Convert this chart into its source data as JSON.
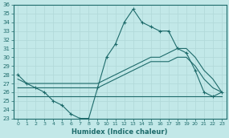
{
  "xlabel": "Humidex (Indice chaleur)",
  "xlim": [
    -0.5,
    23.5
  ],
  "ylim": [
    23,
    36
  ],
  "yticks": [
    23,
    24,
    25,
    26,
    27,
    28,
    29,
    30,
    31,
    32,
    33,
    34,
    35,
    36
  ],
  "xticks": [
    0,
    1,
    2,
    3,
    4,
    5,
    6,
    7,
    8,
    9,
    10,
    11,
    12,
    13,
    14,
    15,
    16,
    17,
    18,
    19,
    20,
    21,
    22,
    23
  ],
  "bg_color": "#c2e8e8",
  "line_color": "#1e6b6b",
  "grid_color": "#b0d8d8",
  "line1_x": [
    0,
    1,
    2,
    3,
    4,
    5,
    6,
    7,
    8,
    9,
    10,
    11,
    12,
    13,
    14,
    15,
    16,
    17,
    18,
    19,
    20,
    21,
    22,
    23
  ],
  "line1_y": [
    28,
    27,
    26.5,
    26,
    25,
    24.5,
    23.5,
    23,
    23,
    26.5,
    30,
    31.5,
    34,
    35.5,
    34,
    33.5,
    33,
    33,
    31,
    30.5,
    28.5,
    26,
    25.5,
    26
  ],
  "line2_x": [
    0,
    1,
    2,
    3,
    4,
    5,
    6,
    7,
    8,
    9,
    10,
    11,
    12,
    13,
    14,
    15,
    16,
    17,
    18,
    19,
    20,
    21,
    22,
    23
  ],
  "line2_y": [
    27.5,
    27.0,
    27.0,
    27.0,
    27.0,
    27.0,
    27.0,
    27.0,
    27.0,
    27.0,
    27.5,
    28.0,
    28.5,
    29.0,
    29.5,
    30.0,
    30.0,
    30.5,
    31.0,
    31.0,
    30.0,
    28.5,
    27.5,
    26.0
  ],
  "line3_x": [
    0,
    1,
    2,
    3,
    4,
    5,
    6,
    7,
    8,
    9,
    10,
    11,
    12,
    13,
    14,
    15,
    16,
    17,
    18,
    19,
    20,
    21,
    22,
    23
  ],
  "line3_y": [
    26.5,
    26.5,
    26.5,
    26.5,
    26.5,
    26.5,
    26.5,
    26.5,
    26.5,
    26.5,
    27.0,
    27.5,
    28.0,
    28.5,
    29.0,
    29.5,
    29.5,
    29.5,
    30.0,
    30.0,
    29.0,
    27.5,
    26.5,
    26.0
  ],
  "line4_x": [
    0,
    1,
    2,
    3,
    4,
    5,
    6,
    7,
    8,
    9,
    10,
    11,
    12,
    13,
    14,
    15,
    16,
    17,
    18,
    19,
    20,
    21,
    22,
    23
  ],
  "line4_y": [
    25.5,
    25.5,
    25.5,
    25.5,
    25.5,
    25.5,
    25.5,
    25.5,
    25.5,
    25.5,
    25.5,
    25.5,
    25.5,
    25.5,
    25.5,
    25.5,
    25.5,
    25.5,
    25.5,
    25.5,
    25.5,
    25.5,
    25.5,
    25.5
  ]
}
